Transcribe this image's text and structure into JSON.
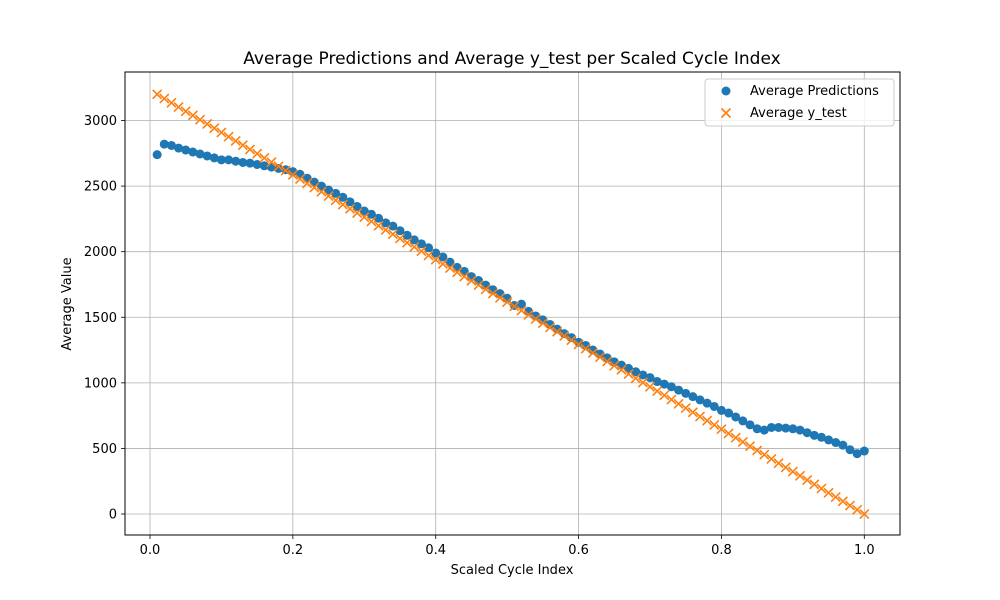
{
  "chart_data": {
    "type": "scatter",
    "title": "Average Predictions and Average y_test per Scaled Cycle Index",
    "xlabel": "Scaled Cycle Index",
    "ylabel": "Average Value",
    "xlim": [
      -0.035,
      1.05
    ],
    "ylim": [
      -160,
      3370
    ],
    "xticks": [
      0.0,
      0.2,
      0.4,
      0.6,
      0.8,
      1.0
    ],
    "xtick_labels": [
      "0.0",
      "0.2",
      "0.4",
      "0.6",
      "0.8",
      "1.0"
    ],
    "yticks": [
      0,
      500,
      1000,
      1500,
      2000,
      2500,
      3000
    ],
    "ytick_labels": [
      "0",
      "500",
      "1000",
      "1500",
      "2000",
      "2500",
      "3000"
    ],
    "grid": true,
    "legend_position": "top-right",
    "series": [
      {
        "name": "Average Predictions",
        "marker": "circle",
        "color": "#1f77b4",
        "points": [
          [
            0.01,
            2740
          ],
          [
            0.02,
            2820
          ],
          [
            0.03,
            2810
          ],
          [
            0.04,
            2790
          ],
          [
            0.05,
            2775
          ],
          [
            0.06,
            2760
          ],
          [
            0.07,
            2745
          ],
          [
            0.08,
            2730
          ],
          [
            0.09,
            2715
          ],
          [
            0.1,
            2700
          ],
          [
            0.11,
            2700
          ],
          [
            0.12,
            2690
          ],
          [
            0.13,
            2680
          ],
          [
            0.14,
            2675
          ],
          [
            0.15,
            2665
          ],
          [
            0.16,
            2655
          ],
          [
            0.17,
            2645
          ],
          [
            0.18,
            2635
          ],
          [
            0.19,
            2625
          ],
          [
            0.2,
            2610
          ],
          [
            0.21,
            2590
          ],
          [
            0.22,
            2560
          ],
          [
            0.23,
            2530
          ],
          [
            0.24,
            2500
          ],
          [
            0.25,
            2470
          ],
          [
            0.26,
            2445
          ],
          [
            0.27,
            2415
          ],
          [
            0.28,
            2380
          ],
          [
            0.29,
            2345
          ],
          [
            0.3,
            2310
          ],
          [
            0.31,
            2285
          ],
          [
            0.32,
            2255
          ],
          [
            0.33,
            2220
          ],
          [
            0.34,
            2195
          ],
          [
            0.35,
            2160
          ],
          [
            0.36,
            2125
          ],
          [
            0.37,
            2090
          ],
          [
            0.38,
            2060
          ],
          [
            0.39,
            2030
          ],
          [
            0.4,
            1990
          ],
          [
            0.41,
            1960
          ],
          [
            0.42,
            1920
          ],
          [
            0.43,
            1880
          ],
          [
            0.44,
            1850
          ],
          [
            0.45,
            1810
          ],
          [
            0.46,
            1780
          ],
          [
            0.47,
            1745
          ],
          [
            0.48,
            1710
          ],
          [
            0.49,
            1680
          ],
          [
            0.5,
            1645
          ],
          [
            0.51,
            1590
          ],
          [
            0.52,
            1600
          ],
          [
            0.53,
            1545
          ],
          [
            0.54,
            1510
          ],
          [
            0.55,
            1480
          ],
          [
            0.56,
            1445
          ],
          [
            0.57,
            1410
          ],
          [
            0.58,
            1375
          ],
          [
            0.59,
            1345
          ],
          [
            0.6,
            1310
          ],
          [
            0.61,
            1285
          ],
          [
            0.62,
            1250
          ],
          [
            0.63,
            1220
          ],
          [
            0.64,
            1190
          ],
          [
            0.65,
            1160
          ],
          [
            0.66,
            1135
          ],
          [
            0.67,
            1110
          ],
          [
            0.68,
            1085
          ],
          [
            0.69,
            1060
          ],
          [
            0.7,
            1040
          ],
          [
            0.71,
            1010
          ],
          [
            0.72,
            990
          ],
          [
            0.73,
            970
          ],
          [
            0.74,
            945
          ],
          [
            0.75,
            920
          ],
          [
            0.76,
            895
          ],
          [
            0.77,
            870
          ],
          [
            0.78,
            845
          ],
          [
            0.79,
            820
          ],
          [
            0.8,
            790
          ],
          [
            0.81,
            770
          ],
          [
            0.82,
            740
          ],
          [
            0.83,
            710
          ],
          [
            0.84,
            680
          ],
          [
            0.85,
            650
          ],
          [
            0.86,
            640
          ],
          [
            0.87,
            660
          ],
          [
            0.88,
            660
          ],
          [
            0.89,
            655
          ],
          [
            0.9,
            650
          ],
          [
            0.91,
            640
          ],
          [
            0.92,
            620
          ],
          [
            0.93,
            600
          ],
          [
            0.94,
            585
          ],
          [
            0.95,
            565
          ],
          [
            0.96,
            545
          ],
          [
            0.97,
            525
          ],
          [
            0.98,
            490
          ],
          [
            0.99,
            460
          ],
          [
            1.0,
            480
          ]
        ]
      },
      {
        "name": "Average y_test",
        "marker": "x",
        "color": "#ff7f0e",
        "line": {
          "x0": 0.01,
          "y0": 3200,
          "x1": 1.0,
          "y1": 0,
          "count": 100
        }
      }
    ]
  }
}
